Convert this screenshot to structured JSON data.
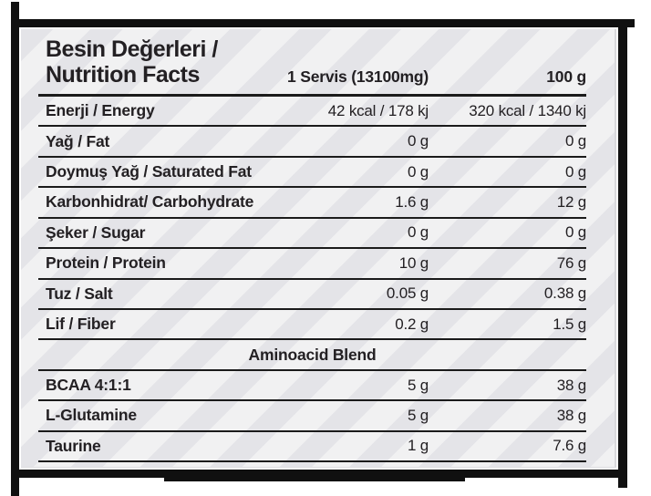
{
  "title": {
    "line1": "Besin Değerleri /",
    "line2": "Nutrition Facts"
  },
  "columns": {
    "serving": "1 Servis (13100mg)",
    "per100": "100 g"
  },
  "rows": [
    {
      "label": "Enerji / Energy",
      "serving": "42 kcal / 178 kj",
      "per100": "320 kcal / 1340 kj"
    },
    {
      "label": "Yağ / Fat",
      "serving": "0 g",
      "per100": "0 g"
    },
    {
      "label": "Doymuş Yağ / Saturated Fat",
      "serving": "0 g",
      "per100": "0 g"
    },
    {
      "label": "Karbonhidrat/ Carbohydrate",
      "serving": "1.6 g",
      "per100": "12 g"
    },
    {
      "label": "Şeker / Sugar",
      "serving": "0 g",
      "per100": "0 g"
    },
    {
      "label": "Protein / Protein",
      "serving": "10 g",
      "per100": "76 g"
    },
    {
      "label": "Tuz / Salt",
      "serving": "0.05 g",
      "per100": "0.38 g"
    },
    {
      "label": "Lif / Fiber",
      "serving": "0.2 g",
      "per100": "1.5 g"
    }
  ],
  "section_header": "Aminoacid Blend",
  "amino_rows": [
    {
      "label": "BCAA 4:1:1",
      "serving": "5 g",
      "per100": "38 g"
    },
    {
      "label": "L-Glutamine",
      "serving": "5 g",
      "per100": "38 g"
    },
    {
      "label": "Taurine",
      "serving": "1 g",
      "per100": "7.6 g"
    }
  ],
  "colors": {
    "frame": "#101010",
    "rule": "#1b1b1b",
    "text": "#232023",
    "sheet_base": "#f1f1f2",
    "sheet_stripe": "#e0e0e5",
    "page_background": "#ffffff"
  }
}
